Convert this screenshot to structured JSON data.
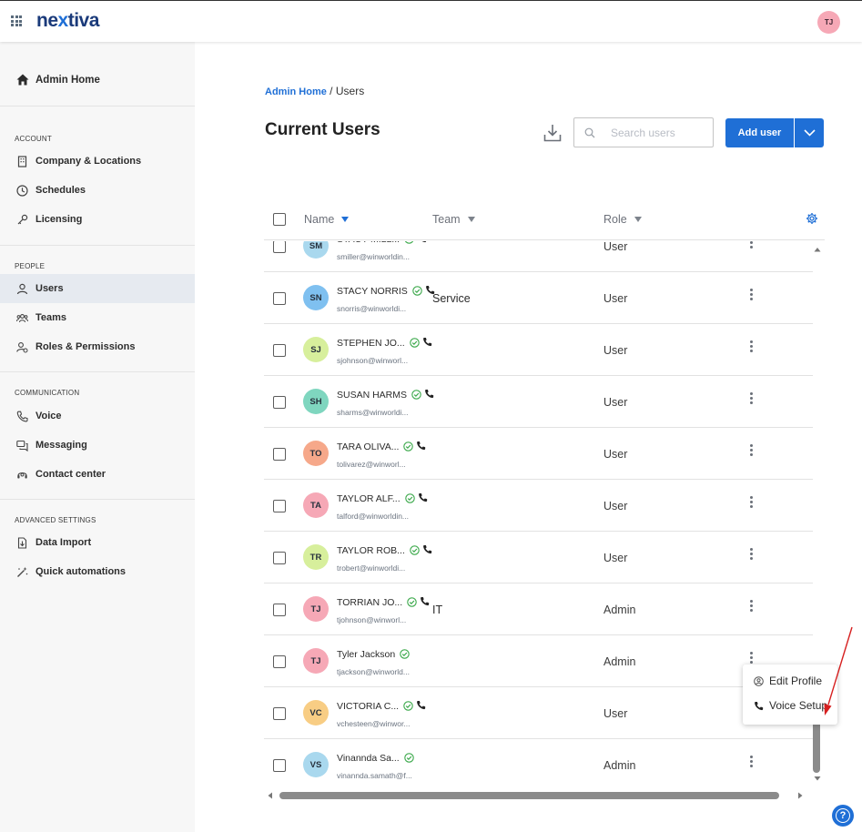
{
  "app": {
    "logo_main": "ne",
    "logo_x": "x",
    "logo_rest": "tiva",
    "user_initials": "TJ"
  },
  "sidebar": {
    "home": "Admin Home",
    "account_heading": "ACCOUNT",
    "account": [
      "Company & Locations",
      "Schedules",
      "Licensing"
    ],
    "people_heading": "PEOPLE",
    "people": [
      "Users",
      "Teams",
      "Roles & Permissions"
    ],
    "communication_heading": "COMMUNICATION",
    "communication": [
      "Voice",
      "Messaging",
      "Contact center"
    ],
    "advanced_heading": "ADVANCED SETTINGS",
    "advanced": [
      "Data Import",
      "Quick automations"
    ]
  },
  "breadcrumb": {
    "link": "Admin Home",
    "separator": " / ",
    "current": "Users"
  },
  "page_title": "Current Users",
  "search": {
    "placeholder": "Search users"
  },
  "add_user_label": "Add user",
  "columns": {
    "name": "Name",
    "team": "Team",
    "role": "Role"
  },
  "rows": [
    {
      "initials": "SM",
      "name": "STACY MILL...",
      "email": "smiller@winworldin...",
      "team": "",
      "role": "User",
      "avatar_color": "#a9d8ee"
    },
    {
      "initials": "SN",
      "name": "STACY NORRIS",
      "email": "snorris@winworldi...",
      "team": "Service",
      "role": "User",
      "avatar_color": "#7fc0f0"
    },
    {
      "initials": "SJ",
      "name": "STEPHEN JO...",
      "email": "sjohnson@winworl...",
      "team": "",
      "role": "User",
      "avatar_color": "#d7ef9c"
    },
    {
      "initials": "SH",
      "name": "SUSAN HARMS",
      "email": "sharms@winworldi...",
      "team": "",
      "role": "User",
      "avatar_color": "#7fd6bf"
    },
    {
      "initials": "TO",
      "name": "TARA OLIVA...",
      "email": "tolivarez@winworl...",
      "team": "",
      "role": "User",
      "avatar_color": "#f6a88a"
    },
    {
      "initials": "TA",
      "name": "TAYLOR ALF...",
      "email": "talford@winworldin...",
      "team": "",
      "role": "User",
      "avatar_color": "#f6a8b6"
    },
    {
      "initials": "TR",
      "name": "TAYLOR ROB...",
      "email": "trobert@winworldi...",
      "team": "",
      "role": "User",
      "avatar_color": "#d7ef9c"
    },
    {
      "initials": "TJ",
      "name": "TORRIAN JO...",
      "email": "tjohnson@winworl...",
      "team": "IT",
      "role": "Admin",
      "avatar_color": "#f6a8b6"
    },
    {
      "initials": "TJ",
      "name": "Tyler Jackson",
      "email": "tjackson@winworld...",
      "team": "",
      "role": "Admin",
      "avatar_color": "#f6a8b6"
    },
    {
      "initials": "VC",
      "name": "VICTORIA C...",
      "email": "vchesteen@winwor...",
      "team": "",
      "role": "User",
      "avatar_color": "#f8cd84"
    },
    {
      "initials": "VS",
      "name": "Vinannda Sa...",
      "email": "vinannda.samath@f...",
      "team": "",
      "role": "Admin",
      "avatar_color": "#a9d8ee"
    }
  ],
  "context_menu": {
    "edit_profile": "Edit Profile",
    "voice_setup": "Voice Setup"
  },
  "help_label": "?",
  "colors": {
    "accent": "#1f6fd6",
    "status_ok": "#3aa84a",
    "annotation_arrow": "#d62020"
  }
}
